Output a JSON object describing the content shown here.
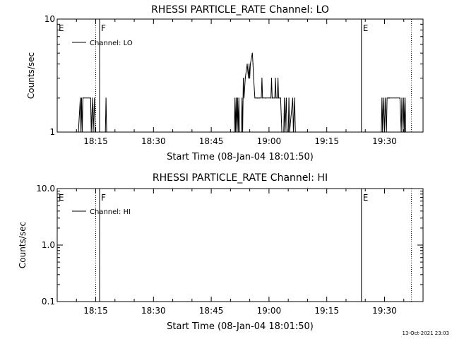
{
  "timestamp": "13-Oct-2021 23:03",
  "chart_data": [
    {
      "type": "line",
      "title": "RHESSI PARTICLE_RATE Channel: LO",
      "xlabel": "Start Time (08-Jan-04 18:01:50)",
      "ylabel": "Counts/sec",
      "yscale": "log",
      "ylim": [
        1,
        10
      ],
      "xlim": [
        "18:05",
        "19:40"
      ],
      "x_ticks": [
        "18:15",
        "18:30",
        "18:45",
        "19:00",
        "19:15",
        "19:30"
      ],
      "y_ticks": [
        "1",
        "10"
      ],
      "series": [
        {
          "name": "Channel: LO",
          "color": "#000000",
          "x": [
            "18:10:30",
            "18:11:00",
            "18:11:10",
            "18:11:20",
            "18:11:30",
            "18:11:40",
            "18:11:50",
            "18:13:40",
            "18:13:50",
            "18:14:10",
            "18:14:20",
            "18:14:40",
            "18:14:50",
            "18:15:00",
            "18:17:30",
            "18:17:40",
            "18:17:50",
            "18:18:00",
            "18:51:00",
            "18:51:10",
            "18:51:20",
            "18:51:30",
            "18:51:40",
            "18:51:50",
            "18:52:00",
            "18:52:10",
            "18:52:20",
            "18:52:50",
            "18:53:00",
            "18:53:10",
            "18:53:20",
            "18:53:30",
            "18:53:50",
            "18:54:20",
            "18:54:40",
            "18:54:50",
            "18:55:00",
            "18:55:10",
            "18:55:40",
            "18:55:50",
            "18:56:00",
            "18:56:20",
            "18:56:50",
            "18:57:00",
            "18:57:20",
            "18:57:30",
            "18:58:00",
            "18:58:10",
            "18:58:20",
            "18:59:00",
            "19:00:30",
            "19:00:40",
            "19:00:50",
            "19:01:00",
            "19:01:30",
            "19:01:40",
            "19:01:50",
            "19:02:10",
            "19:02:20",
            "19:02:30",
            "19:02:50",
            "19:03:00",
            "19:03:20",
            "19:03:50",
            "19:04:00",
            "19:04:10",
            "19:04:30",
            "19:04:40",
            "19:05:00",
            "19:05:10",
            "19:05:20",
            "19:06:10",
            "19:06:20",
            "19:06:40",
            "19:06:50",
            "19:29:10",
            "19:29:20",
            "19:29:30",
            "19:29:40",
            "19:30:00",
            "19:30:10",
            "19:30:30",
            "19:30:40",
            "19:31:00",
            "19:31:10",
            "19:31:20",
            "19:33:50",
            "19:34:00",
            "19:34:20",
            "19:34:30",
            "19:34:50",
            "19:35:00",
            "19:35:10",
            "19:35:20",
            "19:35:30"
          ],
          "values": [
            1,
            2,
            1,
            2,
            1,
            2,
            2,
            2,
            1,
            2,
            1,
            2,
            1,
            1,
            1,
            2,
            1,
            1,
            1,
            2,
            1,
            2,
            1,
            2,
            1,
            2,
            1,
            1,
            2,
            1,
            3,
            2,
            3,
            4,
            3,
            4,
            3,
            4,
            5,
            4,
            3,
            2,
            2,
            2,
            2,
            2,
            2,
            3,
            2,
            2,
            2,
            3,
            2,
            2,
            2,
            3,
            2,
            2,
            3,
            2,
            2,
            2,
            1,
            1,
            2,
            1,
            2,
            1,
            1,
            2,
            1,
            2,
            1,
            2,
            1,
            1,
            2,
            1,
            2,
            1,
            2,
            1,
            2,
            2,
            2,
            2,
            2,
            2,
            1,
            2,
            1,
            2,
            1,
            2,
            1
          ]
        }
      ],
      "annotations": [
        {
          "label": "E",
          "x": "18:05"
        },
        {
          "label": "F",
          "x": "18:16",
          "style": "solid"
        },
        {
          "label": "",
          "x": "18:15",
          "style": "dotted"
        },
        {
          "label": "E",
          "x": "19:24",
          "style": "solid"
        },
        {
          "label": "",
          "x": "19:37",
          "style": "dotted"
        }
      ],
      "legend": {
        "position": "top-left",
        "entries": [
          "Channel: LO"
        ]
      }
    },
    {
      "type": "line",
      "title": "RHESSI PARTICLE_RATE Channel: HI",
      "xlabel": "Start Time (08-Jan-04 18:01:50)",
      "ylabel": "Counts/sec",
      "yscale": "log",
      "ylim": [
        0.1,
        10
      ],
      "xlim": [
        "18:05",
        "19:40"
      ],
      "x_ticks": [
        "18:15",
        "18:30",
        "18:45",
        "19:00",
        "19:15",
        "19:30"
      ],
      "y_ticks": [
        "0.1",
        "1.0",
        "10.0"
      ],
      "series": [
        {
          "name": "Channel: HI",
          "color": "#000000",
          "x": [],
          "values": []
        }
      ],
      "annotations": [
        {
          "label": "E",
          "x": "18:05"
        },
        {
          "label": "F",
          "x": "18:16",
          "style": "solid"
        },
        {
          "label": "",
          "x": "18:15",
          "style": "dotted"
        },
        {
          "label": "E",
          "x": "19:24",
          "style": "solid"
        },
        {
          "label": "",
          "x": "19:37",
          "style": "dotted"
        }
      ],
      "legend": {
        "position": "top-left",
        "entries": [
          "Channel: HI"
        ]
      }
    }
  ]
}
